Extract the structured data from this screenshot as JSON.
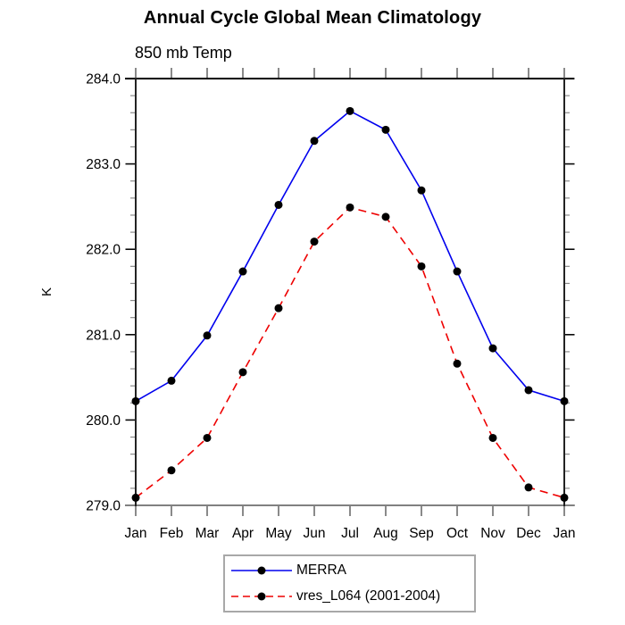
{
  "page": {
    "title": "Annual Cycle Global Mean Climatology",
    "subtitle": "850 mb Temp"
  },
  "chart_data": {
    "type": "line",
    "title": "Annual Cycle Global Mean Climatology",
    "subtitle": "850 mb Temp",
    "xlabel": "",
    "ylabel": "K",
    "categories": [
      "Jan",
      "Feb",
      "Mar",
      "Apr",
      "May",
      "Jun",
      "Jul",
      "Aug",
      "Sep",
      "Oct",
      "Nov",
      "Dec",
      "Jan"
    ],
    "ylim": [
      279.0,
      284.0
    ],
    "y_major_ticks": [
      "284.0",
      "283.0",
      "282.0",
      "281.0",
      "280.0",
      "279.0"
    ],
    "y_minor_step": 0.2,
    "grid": false,
    "legend_position": "bottom-center",
    "series": [
      {
        "name": "MERRA",
        "color": "#0000ee",
        "style": "solid",
        "marker": "circle",
        "marker_color": "#000000",
        "values": [
          280.22,
          280.46,
          280.99,
          281.74,
          282.52,
          283.27,
          283.62,
          283.4,
          282.69,
          281.74,
          280.84,
          280.35,
          280.22
        ]
      },
      {
        "name": "vres_L064 (2001-2004)",
        "color": "#ee0000",
        "style": "dashed",
        "marker": "circle",
        "marker_color": "#000000",
        "values": [
          279.09,
          279.41,
          279.79,
          280.56,
          281.31,
          282.09,
          282.49,
          282.38,
          281.8,
          280.66,
          279.79,
          279.21,
          279.09
        ]
      }
    ]
  }
}
